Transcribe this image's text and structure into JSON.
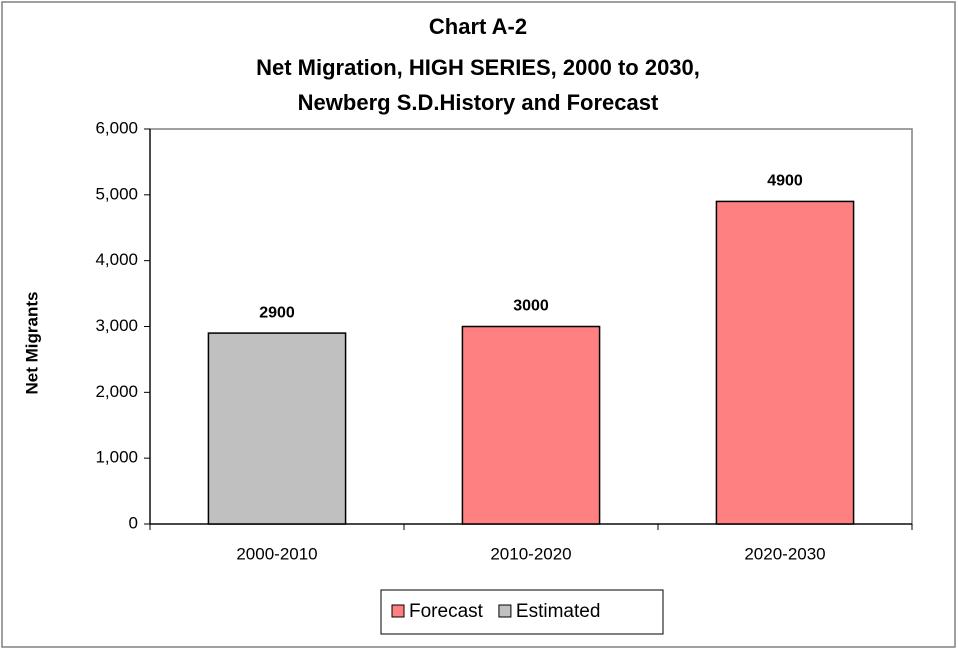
{
  "chart_data": {
    "type": "bar",
    "title": "Chart A-2",
    "subtitle": [
      "Net Migration, HIGH SERIES, 2000 to 2030,",
      "Newberg S.D.History and Forecast"
    ],
    "y_label": "Net Migrants",
    "categories": [
      "2000-2010",
      "2010-2020",
      "2020-2030"
    ],
    "series": [
      {
        "name": "Forecast",
        "color": "#ff8080",
        "values": [
          null,
          3000,
          4900
        ]
      },
      {
        "name": "Estimated",
        "color": "#c0c0c0",
        "values": [
          2900,
          null,
          null
        ]
      }
    ],
    "ylim": [
      0,
      6000
    ],
    "yticks": [
      0,
      {
        "value": 1000,
        "label": "1,000"
      },
      {
        "value": 2000,
        "label": "2,000"
      },
      {
        "value": 3000,
        "label": "3,000"
      },
      {
        "value": 4000,
        "label": "4,000"
      },
      {
        "value": 5000,
        "label": "5,000"
      },
      {
        "value": 6000,
        "label": "6,000"
      }
    ],
    "grid": false,
    "legend": "bottom"
  }
}
